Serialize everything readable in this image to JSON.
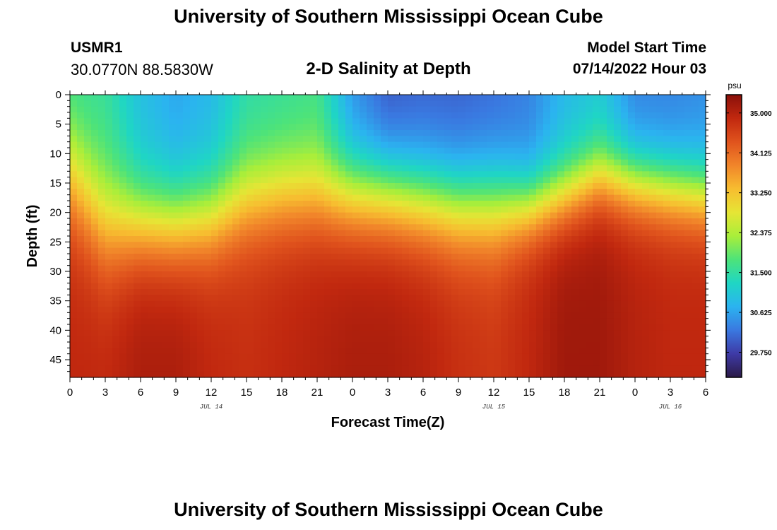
{
  "header": {
    "title": "University of Southern Mississippi Ocean Cube",
    "station": "USMR1",
    "coords": "30.0770N  88.5830W",
    "subtitle": "2-D Salinity at Depth",
    "model_label": "Model Start Time",
    "model_time": "07/14/2022 Hour 03"
  },
  "footer": {
    "title": "University of Southern Mississippi Ocean Cube"
  },
  "chart_data": {
    "type": "heatmap",
    "title": "2-D Salinity at Depth",
    "xlabel": "Forecast Time(Z)",
    "ylabel": "Depth (ft)",
    "x_tick_labels": [
      "0",
      "3",
      "6",
      "9",
      "12",
      "15",
      "18",
      "21",
      "0",
      "3",
      "6",
      "9",
      "12",
      "15",
      "18",
      "21",
      "0",
      "3",
      "6"
    ],
    "date_labels": [
      {
        "text": "JUL 14",
        "at_hour": 12
      },
      {
        "text": "JUL 15",
        "at_hour": 36
      },
      {
        "text": "JUL 16",
        "at_hour": 51
      }
    ],
    "x_range_hours": [
      0,
      54
    ],
    "y_ticks": [
      0,
      5,
      10,
      15,
      20,
      25,
      30,
      35,
      40,
      45
    ],
    "y_range_ft": [
      0,
      48
    ],
    "colorbar": {
      "unit": "psu",
      "ticks": [
        35.0,
        34.125,
        33.25,
        32.375,
        31.5,
        30.625,
        29.75
      ],
      "tick_labels": [
        "35.000",
        "34.125",
        "33.250",
        "32.375",
        "31.500",
        "30.625",
        "29.750"
      ],
      "range": [
        29.2,
        35.4
      ],
      "colors": [
        "#2b1a47",
        "#3e3aa6",
        "#3a78e0",
        "#2bb3f0",
        "#1fd6c4",
        "#4de37a",
        "#a9ee3a",
        "#e6e535",
        "#f7bd30",
        "#f1852a",
        "#e0531d",
        "#c1280f",
        "#8a100a"
      ]
    },
    "surface_profile": {
      "hours": [
        0,
        3,
        6,
        9,
        12,
        15,
        18,
        21,
        24,
        27,
        30,
        33,
        36,
        39,
        42,
        45,
        48,
        51,
        54
      ],
      "surface_psu": [
        31.5,
        31.5,
        30.9,
        30.6,
        30.8,
        31.4,
        31.5,
        31.6,
        30.4,
        29.9,
        30.0,
        30.0,
        30.1,
        30.3,
        30.8,
        31.0,
        30.3,
        30.3,
        30.4
      ],
      "halocline_depth_ft": [
        14,
        22,
        22,
        22,
        21,
        18,
        17,
        17,
        17,
        17,
        18,
        19,
        19,
        19,
        17,
        14,
        15,
        16,
        17
      ],
      "halocline_width_ft": [
        6,
        6,
        5,
        5,
        5,
        5,
        5,
        5,
        5,
        5,
        5,
        5,
        5,
        4,
        4,
        4,
        4,
        4,
        4
      ],
      "bottom_psu": [
        34.9,
        34.9,
        35.1,
        35.1,
        34.9,
        34.8,
        34.9,
        35.0,
        35.1,
        35.1,
        35.0,
        34.8,
        34.7,
        34.9,
        35.2,
        35.2,
        35.0,
        34.9,
        34.9
      ]
    }
  }
}
